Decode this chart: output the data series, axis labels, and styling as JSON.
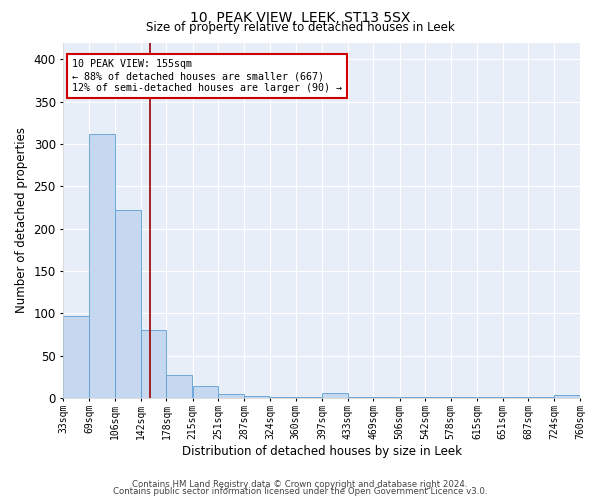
{
  "title": "10, PEAK VIEW, LEEK, ST13 5SX",
  "subtitle": "Size of property relative to detached houses in Leek",
  "xlabel": "Distribution of detached houses by size in Leek",
  "ylabel": "Number of detached properties",
  "bin_labels": [
    "33sqm",
    "69sqm",
    "106sqm",
    "142sqm",
    "178sqm",
    "215sqm",
    "251sqm",
    "287sqm",
    "324sqm",
    "360sqm",
    "397sqm",
    "433sqm",
    "469sqm",
    "506sqm",
    "542sqm",
    "578sqm",
    "615sqm",
    "651sqm",
    "687sqm",
    "724sqm",
    "760sqm"
  ],
  "bin_edges": [
    33,
    69,
    106,
    142,
    178,
    215,
    251,
    287,
    324,
    360,
    397,
    433,
    469,
    506,
    542,
    578,
    615,
    651,
    687,
    724,
    760
  ],
  "bar_heights": [
    97,
    312,
    222,
    81,
    27,
    14,
    5,
    2,
    1,
    1,
    6,
    1,
    1,
    1,
    1,
    1,
    1,
    1,
    1,
    4,
    1
  ],
  "bar_color": "#c5d8f0",
  "bar_edge_color": "#5a9fd4",
  "vline_x": 155,
  "vline_color": "#990000",
  "annotation_text": "10 PEAK VIEW: 155sqm\n← 88% of detached houses are smaller (667)\n12% of semi-detached houses are larger (90) →",
  "annotation_box_color": "#cc0000",
  "ylim": [
    0,
    420
  ],
  "yticks": [
    0,
    50,
    100,
    150,
    200,
    250,
    300,
    350,
    400
  ],
  "bg_color": "#e8eef8",
  "grid_color": "#ffffff",
  "footer_line1": "Contains HM Land Registry data © Crown copyright and database right 2024.",
  "footer_line2": "Contains public sector information licensed under the Open Government Licence v3.0."
}
